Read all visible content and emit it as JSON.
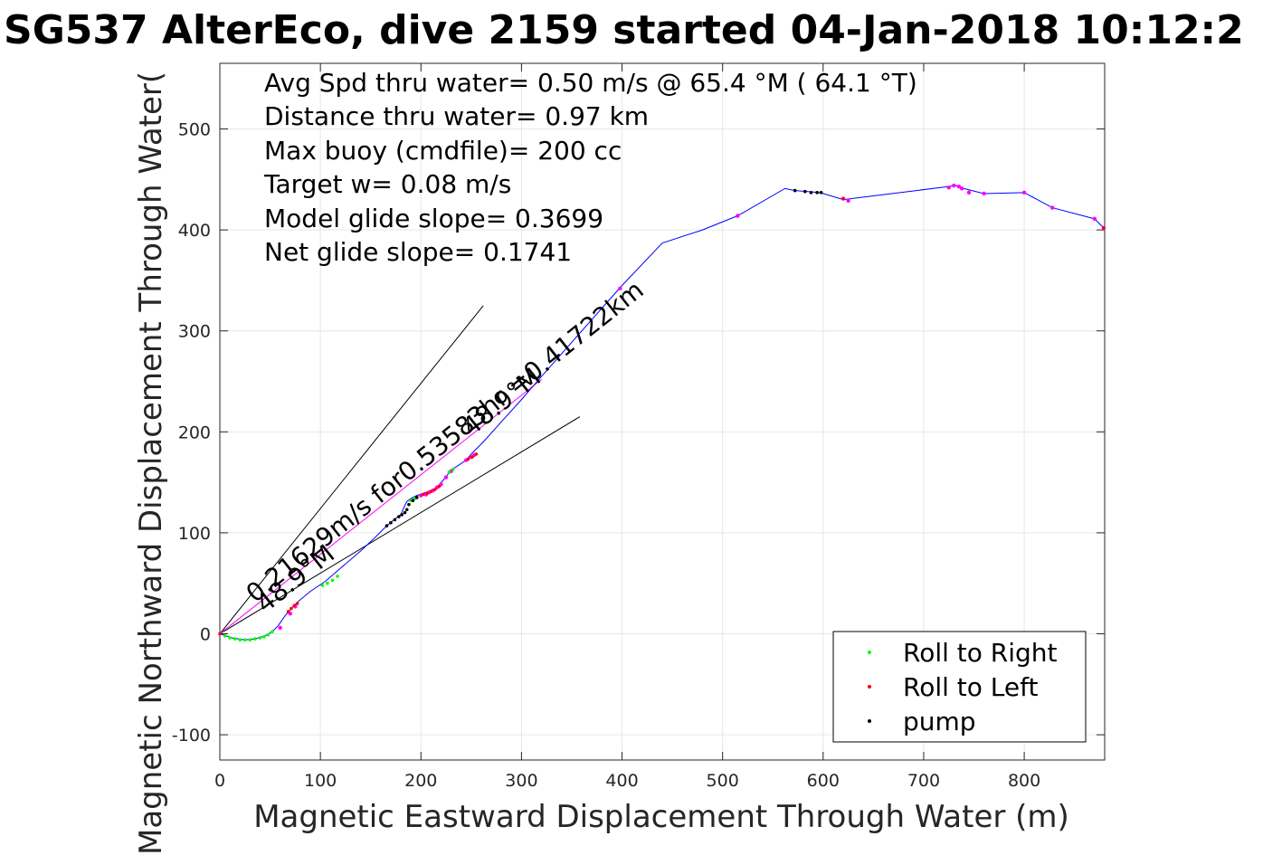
{
  "chart_data": {
    "type": "line",
    "title": "SG537 AlterEco, dive 2159 started 04-Jan-2018 10:12:2",
    "xlabel": "Magnetic Eastward Displacement Through Water (m)",
    "ylabel": "Magnetic Northward Displacement Through Water(",
    "xlim": [
      0,
      880
    ],
    "ylim": [
      -125,
      565
    ],
    "xticks": [
      0,
      100,
      200,
      300,
      400,
      500,
      600,
      700,
      800
    ],
    "yticks": [
      -100,
      0,
      100,
      200,
      300,
      400,
      500
    ],
    "grid": true,
    "legend_position": "bottom-right",
    "stats": [
      "Avg Spd thru water=  0.50 m/s @  65.4 °M ( 64.1 °T)",
      "Distance thru water=  0.97 km",
      "Max buoy (cmdfile)= 200 cc",
      "Target w= 0.08 m/s",
      "Model glide slope= 0.3699",
      "Net glide slope= 0.1741"
    ],
    "track": {
      "color": "#0000ff",
      "x": [
        0,
        12,
        25,
        35,
        45,
        52,
        58,
        65,
        72,
        78,
        90,
        105,
        120,
        140,
        155,
        165,
        172,
        180,
        183,
        186,
        190,
        196,
        205,
        215,
        222,
        230,
        245,
        250,
        262,
        280,
        300,
        320,
        360,
        400,
        440,
        480,
        515,
        562,
        572,
        585,
        597,
        620,
        660,
        725,
        732,
        740,
        760,
        800,
        828,
        870,
        879
      ],
      "y": [
        0,
        -4,
        -6,
        -5,
        -2,
        2,
        8,
        18,
        26,
        32,
        42,
        52,
        65,
        82,
        96,
        106,
        112,
        118,
        125,
        131,
        134,
        137,
        140,
        144,
        152,
        162,
        172,
        178,
        190,
        210,
        232,
        255,
        300,
        345,
        387,
        400,
        414,
        441,
        439,
        438,
        437,
        430,
        435,
        443,
        444,
        441,
        436,
        437,
        422,
        411,
        402
      ]
    },
    "series": [
      {
        "name": "Roll to Right",
        "color": "#00ff00",
        "x": [
          5,
          10,
          15,
          20,
          25,
          30,
          35,
          40,
          44,
          48,
          52,
          102,
          107,
          112,
          117,
          190,
          194,
          228,
          232
        ],
        "y": [
          -2,
          -4,
          -5,
          -6,
          -6,
          -6,
          -5,
          -4,
          -3,
          -1,
          2,
          48,
          50,
          53,
          57,
          132,
          134,
          160,
          163
        ]
      },
      {
        "name": "Roll to Left",
        "color": "#ff0000",
        "x": [
          68,
          71,
          74,
          77,
          202,
          206,
          210,
          214,
          218,
          247,
          251,
          255,
          0,
          879,
          620
        ],
        "y": [
          22,
          25,
          28,
          30,
          138,
          139,
          141,
          143,
          146,
          173,
          175,
          178,
          0,
          402,
          431
        ]
      },
      {
        "name": "pump",
        "color": "#000000",
        "x": [
          166,
          170,
          174,
          178,
          181,
          184,
          186,
          188,
          192,
          196,
          572,
          582,
          588,
          594,
          598
        ],
        "y": [
          107,
          110,
          113,
          116,
          118,
          120,
          123,
          128,
          132,
          135,
          439,
          438,
          437,
          437,
          437
        ]
      }
    ],
    "pink_points": {
      "color": "#ff00ff",
      "x": [
        60,
        70,
        75,
        200,
        205,
        208,
        212,
        216,
        220,
        225,
        230,
        245,
        250,
        253,
        398,
        515,
        620,
        625,
        725,
        730,
        735,
        738,
        745,
        760,
        800,
        828,
        870,
        879
      ],
      "y": [
        6,
        20,
        27,
        137,
        138,
        140,
        142,
        145,
        148,
        155,
        161,
        172,
        175,
        177,
        342,
        414,
        431,
        429,
        442,
        444,
        443,
        441,
        437,
        436,
        437,
        422,
        411,
        402
      ]
    },
    "guide_lines": [
      {
        "x": [
          0,
          262
        ],
        "y": [
          0,
          325
        ],
        "color": "#000000"
      },
      {
        "x": [
          0,
          358
        ],
        "y": [
          0,
          215
        ],
        "color": "#000000"
      },
      {
        "x": [
          0,
          320
        ],
        "y": [
          0,
          252
        ],
        "color": "#ff00ff"
      }
    ],
    "annotations": [
      {
        "text": "0.21629m/s for0.53583hr =0.41722km",
        "x": 35,
        "y": 30,
        "rotate": -38.5
      },
      {
        "text": "48.9°M",
        "x": 45,
        "y": 20,
        "rotate": -38.5
      },
      {
        "text": "48.9°M",
        "x": 250,
        "y": 195,
        "rotate": -38.5
      }
    ]
  }
}
